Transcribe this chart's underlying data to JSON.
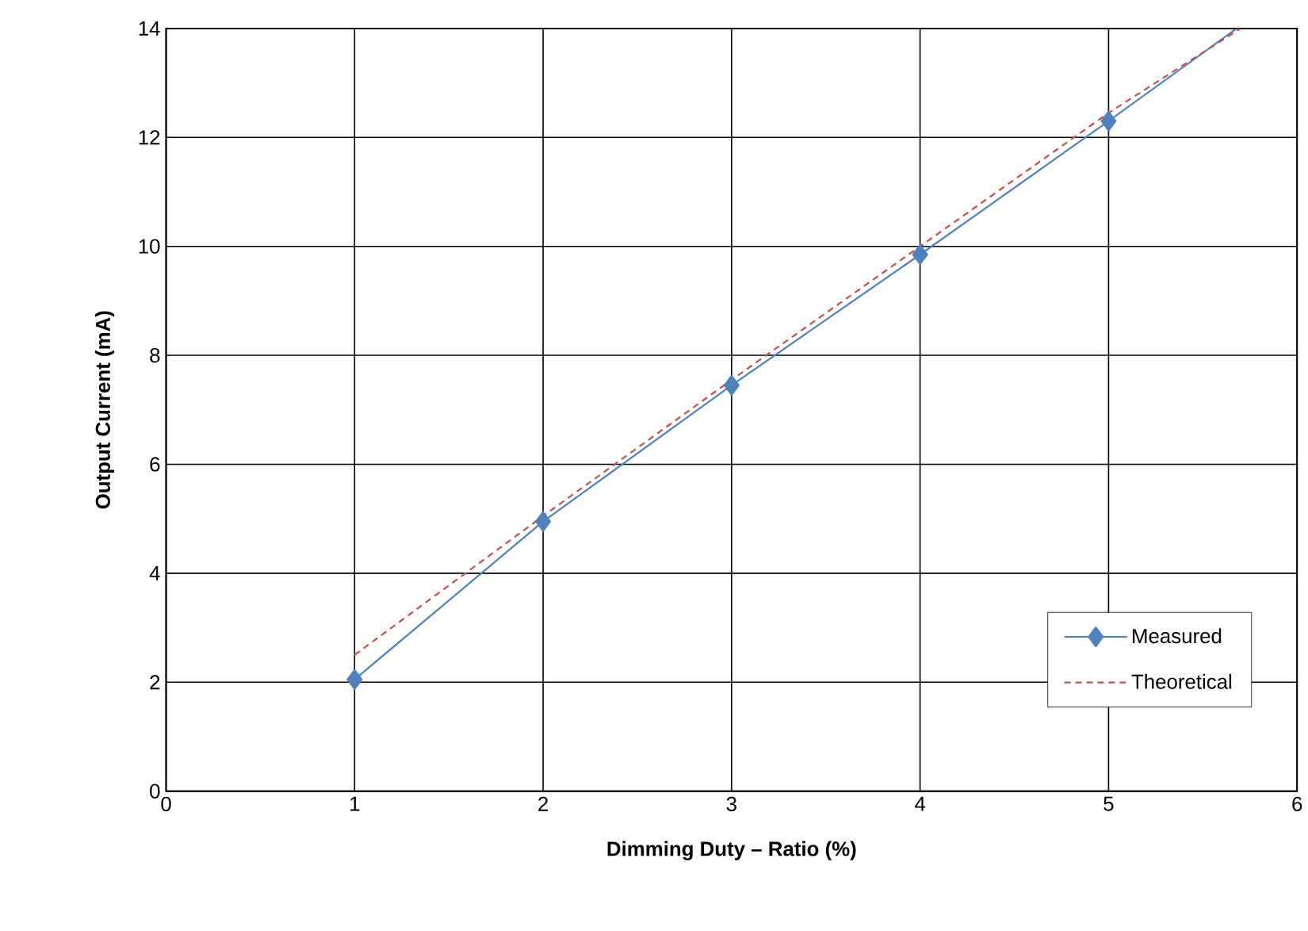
{
  "chart_data": {
    "type": "line",
    "xlabel": "Dimming Duty – Ratio (%)",
    "ylabel": "Output Current (mA)",
    "xlim": [
      0,
      6
    ],
    "ylim": [
      0,
      14
    ],
    "xticks": [
      0,
      1,
      2,
      3,
      4,
      5,
      6
    ],
    "yticks": [
      0,
      2,
      4,
      6,
      8,
      10,
      12,
      14
    ],
    "grid": true,
    "legend": "bottom right",
    "series": [
      {
        "name": "Measured",
        "color": "#4f81bd",
        "x": [
          1,
          2,
          3,
          4,
          5,
          5.68
        ],
        "values": [
          2.05,
          4.95,
          7.45,
          9.85,
          12.3,
          14
        ],
        "marker": "diamond",
        "line_style": "solid"
      },
      {
        "name": "Theoretical",
        "color": "#c0504d",
        "x": [
          1,
          2,
          3,
          4,
          5,
          5.7
        ],
        "values": [
          2.5,
          5.05,
          7.55,
          10.0,
          12.45,
          14
        ],
        "marker": "none",
        "line_style": "dashed"
      }
    ]
  }
}
